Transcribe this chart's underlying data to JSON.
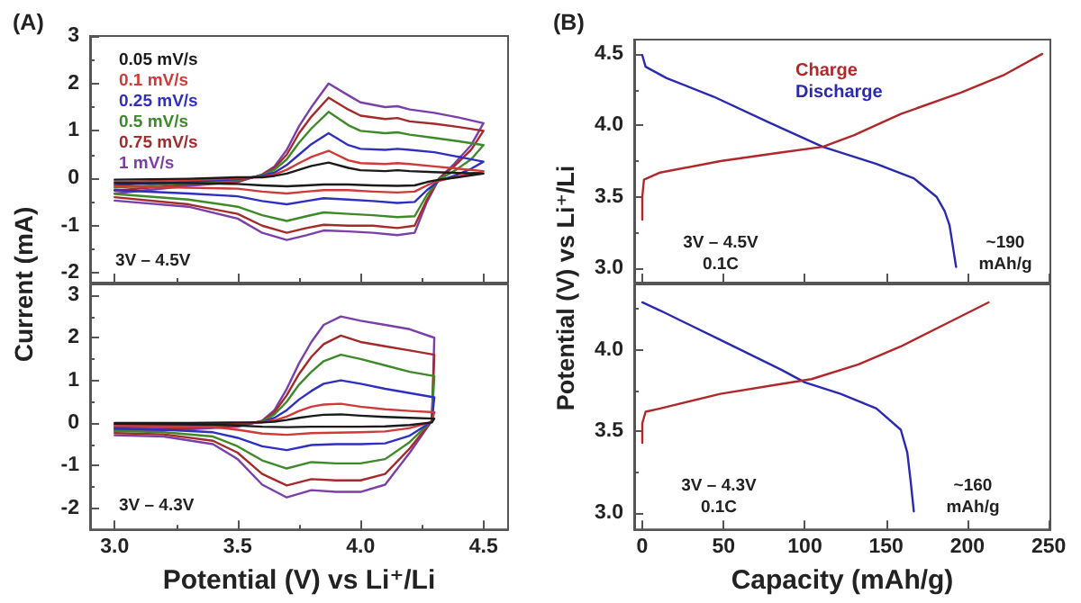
{
  "chart_data": [
    {
      "type": "line",
      "title": "(A)",
      "ylabel": "Current (mA)",
      "x": [
        3.0,
        3.3,
        3.5,
        3.6,
        3.65,
        3.7,
        3.75,
        3.8,
        3.87,
        3.95,
        4.0,
        4.1,
        4.15,
        4.2,
        4.3,
        4.4,
        4.5,
        4.45,
        4.38,
        4.32,
        4.27,
        4.22,
        4.15,
        4.05,
        3.95,
        3.85,
        3.78,
        3.7,
        3.6,
        3.5,
        3.3,
        3.0
      ],
      "series": [
        {
          "name": "0.05 mV/s",
          "color": "#1a1a1a",
          "values": [
            -0.03,
            -0.01,
            0.02,
            0.02,
            0.05,
            0.1,
            0.18,
            0.26,
            0.33,
            0.22,
            0.17,
            0.15,
            0.17,
            0.15,
            0.13,
            0.11,
            0.1,
            0.06,
            0.01,
            -0.03,
            -0.08,
            -0.15,
            -0.16,
            -0.15,
            -0.13,
            -0.13,
            -0.15,
            -0.17,
            -0.15,
            -0.12,
            -0.1,
            -0.1
          ]
        },
        {
          "name": "0.1 mV/s",
          "color": "#d03a3a",
          "values": [
            -0.08,
            -0.04,
            0.0,
            0.03,
            0.08,
            0.18,
            0.32,
            0.45,
            0.58,
            0.38,
            0.32,
            0.3,
            0.32,
            0.3,
            0.25,
            0.2,
            0.15,
            0.1,
            0.02,
            -0.05,
            -0.15,
            -0.28,
            -0.3,
            -0.28,
            -0.25,
            -0.25,
            -0.28,
            -0.32,
            -0.28,
            -0.22,
            -0.2,
            -0.17
          ]
        },
        {
          "name": "0.25 mV/s",
          "color": "#2f2fc0",
          "values": [
            -0.14,
            -0.07,
            -0.02,
            0.05,
            0.12,
            0.28,
            0.5,
            0.72,
            0.95,
            0.7,
            0.62,
            0.6,
            0.62,
            0.6,
            0.55,
            0.45,
            0.35,
            0.2,
            0.05,
            -0.05,
            -0.25,
            -0.5,
            -0.52,
            -0.48,
            -0.45,
            -0.42,
            -0.48,
            -0.55,
            -0.48,
            -0.38,
            -0.32,
            -0.25
          ]
        },
        {
          "name": "0.5 mV/s",
          "color": "#3e8a2a",
          "values": [
            -0.2,
            -0.1,
            -0.04,
            0.06,
            0.18,
            0.4,
            0.75,
            1.05,
            1.4,
            1.12,
            1.0,
            0.95,
            0.97,
            0.92,
            0.85,
            0.78,
            0.7,
            0.4,
            0.15,
            -0.02,
            -0.35,
            -0.8,
            -0.82,
            -0.78,
            -0.75,
            -0.72,
            -0.8,
            -0.9,
            -0.78,
            -0.6,
            -0.45,
            -0.33
          ]
        },
        {
          "name": "0.75 mV/s",
          "color": "#a52a2a",
          "values": [
            -0.26,
            -0.13,
            -0.06,
            0.07,
            0.22,
            0.5,
            0.95,
            1.3,
            1.7,
            1.45,
            1.32,
            1.25,
            1.27,
            1.2,
            1.15,
            1.08,
            1.0,
            0.6,
            0.25,
            0.0,
            -0.45,
            -1.0,
            -1.05,
            -1.0,
            -1.0,
            -0.98,
            -1.05,
            -1.15,
            -1.0,
            -0.75,
            -0.55,
            -0.4
          ]
        },
        {
          "name": "1 mV/s",
          "color": "#7b3fa8",
          "values": [
            -0.32,
            -0.16,
            -0.08,
            0.08,
            0.25,
            0.6,
            1.1,
            1.5,
            2.0,
            1.75,
            1.6,
            1.5,
            1.52,
            1.45,
            1.38,
            1.28,
            1.16,
            0.7,
            0.3,
            0.0,
            -0.5,
            -1.15,
            -1.2,
            -1.15,
            -1.12,
            -1.1,
            -1.2,
            -1.3,
            -1.15,
            -0.85,
            -0.6,
            -0.47
          ]
        }
      ],
      "xlim": [
        2.9,
        4.6
      ],
      "ylim": [
        -2.2,
        3
      ],
      "xticks": [
        3,
        {
          "value": 3.25,
          "label": null
        },
        3.5,
        {
          "value": 3.75,
          "label": null
        },
        4,
        {
          "value": 4.25,
          "label": null
        },
        4.5
      ],
      "yticks": [
        -2,
        {
          "value": -1.5,
          "label": null
        },
        -1,
        {
          "value": -0.5,
          "label": null
        },
        0,
        {
          "value": 0.5,
          "label": null
        },
        1,
        {
          "value": 1.5,
          "label": null
        },
        2,
        {
          "value": 2.5,
          "label": null
        },
        3
      ],
      "tick_labels": "y",
      "legend": "top left",
      "marker": "none",
      "annotations": [
        "3V – 4.5V"
      ]
    },
    {
      "type": "line",
      "xlabel": "Potential (V) vs Li⁺/Li",
      "x": [
        3.0,
        3.3,
        3.5,
        3.6,
        3.65,
        3.7,
        3.75,
        3.8,
        3.85,
        3.92,
        4.0,
        4.1,
        4.2,
        4.3,
        4.29,
        4.2,
        4.1,
        4.0,
        3.9,
        3.8,
        3.7,
        3.6,
        3.5,
        3.4,
        3.2,
        3.0
      ],
      "series": [
        {
          "color": "#1a1a1a",
          "values": [
            0.0,
            0.0,
            0.01,
            0.01,
            0.03,
            0.07,
            0.12,
            0.16,
            0.19,
            0.2,
            0.17,
            0.14,
            0.12,
            0.1,
            0.01,
            -0.05,
            -0.08,
            -0.09,
            -0.09,
            -0.09,
            -0.1,
            -0.09,
            -0.06,
            -0.04,
            -0.03,
            -0.02
          ]
        },
        {
          "color": "#d03a3a",
          "values": [
            -0.04,
            -0.03,
            -0.01,
            0.02,
            0.06,
            0.15,
            0.28,
            0.38,
            0.43,
            0.45,
            0.38,
            0.32,
            0.28,
            0.25,
            0.02,
            -0.12,
            -0.2,
            -0.22,
            -0.23,
            -0.24,
            -0.28,
            -0.25,
            -0.16,
            -0.1,
            -0.08,
            -0.07
          ]
        },
        {
          "color": "#2f2fc0",
          "values": [
            -0.08,
            -0.06,
            -0.03,
            0.02,
            0.12,
            0.3,
            0.55,
            0.75,
            0.92,
            1.0,
            0.92,
            0.8,
            0.7,
            0.6,
            0.03,
            -0.3,
            -0.48,
            -0.5,
            -0.5,
            -0.52,
            -0.64,
            -0.55,
            -0.35,
            -0.22,
            -0.16,
            -0.13
          ]
        },
        {
          "color": "#3e8a2a",
          "values": [
            -0.12,
            -0.09,
            -0.05,
            0.03,
            0.2,
            0.5,
            0.9,
            1.2,
            1.45,
            1.6,
            1.5,
            1.35,
            1.2,
            1.1,
            0.05,
            -0.45,
            -0.85,
            -0.95,
            -0.95,
            -0.92,
            -1.07,
            -0.88,
            -0.55,
            -0.32,
            -0.22,
            -0.19
          ]
        },
        {
          "color": "#a52a2a",
          "values": [
            -0.16,
            -0.12,
            -0.07,
            0.04,
            0.25,
            0.65,
            1.15,
            1.55,
            1.85,
            2.05,
            1.9,
            1.8,
            1.7,
            1.6,
            0.05,
            -0.6,
            -1.2,
            -1.35,
            -1.35,
            -1.32,
            -1.47,
            -1.2,
            -0.7,
            -0.42,
            -0.27,
            -0.24
          ]
        },
        {
          "color": "#7b3fa8",
          "values": [
            -0.2,
            -0.15,
            -0.09,
            0.05,
            0.3,
            0.8,
            1.4,
            1.9,
            2.3,
            2.5,
            2.4,
            2.3,
            2.2,
            2.0,
            0.05,
            -0.7,
            -1.45,
            -1.62,
            -1.62,
            -1.58,
            -1.75,
            -1.45,
            -0.85,
            -0.5,
            -0.32,
            -0.29
          ]
        }
      ],
      "xlim": [
        2.9,
        4.6
      ],
      "ylim": [
        -2.5,
        3.25
      ],
      "xticks": [
        {
          "value": 3,
          "label": "3.0"
        },
        {
          "value": 3.25,
          "label": null
        },
        3.5,
        {
          "value": 3.75,
          "label": null
        },
        {
          "value": 4,
          "label": "4.0"
        },
        {
          "value": 4.25,
          "label": null
        },
        4.5
      ],
      "yticks": [
        -2,
        {
          "value": -1.5,
          "label": null
        },
        -1,
        {
          "value": -0.5,
          "label": null
        },
        0,
        {
          "value": 0.5,
          "label": null
        },
        1,
        {
          "value": 1.5,
          "label": null
        },
        2,
        {
          "value": 2.5,
          "label": null
        },
        3
      ],
      "marker": "none",
      "annotations": [
        "3V – 4.3V"
      ]
    },
    {
      "type": "line",
      "title": "(B)",
      "ylabel": "Potential (V) vs Li⁺/Li",
      "series": [
        {
          "name": "Charge",
          "color": "#b0282a",
          "x": [
            0,
            0,
            1,
            11,
            48,
            85,
            111,
            130,
            159,
            196,
            222,
            246
          ],
          "values": [
            3.34,
            3.5,
            3.62,
            3.67,
            3.75,
            3.81,
            3.85,
            3.93,
            4.08,
            4.23,
            4.35,
            4.5
          ]
        },
        {
          "name": "Discharge",
          "color": "#2a2ab0",
          "x": [
            0,
            2,
            15,
            44,
            78,
            111,
            144,
            167,
            181,
            186,
            189,
            193
          ],
          "values": [
            4.49,
            4.41,
            4.33,
            4.2,
            4.02,
            3.85,
            3.73,
            3.63,
            3.5,
            3.4,
            3.3,
            3.01
          ]
        }
      ],
      "xlim": [
        -5,
        251
      ],
      "ylim": [
        2.9,
        4.6
      ],
      "xticks": [
        0,
        50,
        100,
        150,
        200,
        250
      ],
      "yticks": [
        {
          "value": 3,
          "label": "3.0"
        },
        {
          "value": 3.25,
          "label": null
        },
        3.5,
        {
          "value": 3.75,
          "label": null
        },
        {
          "value": 4,
          "label": "4.0"
        },
        {
          "value": 4.25,
          "label": null
        },
        4.5
      ],
      "tick_labels": "y",
      "legend": "top",
      "marker": "none",
      "annotations": [
        "3V – 4.5V\n0.1C",
        "~190\nmAh/g"
      ]
    },
    {
      "type": "line",
      "xlabel": "Capacity (mAh/g)",
      "series": [
        {
          "color": "#b0282a",
          "x": [
            0,
            0,
            2,
            11,
            48,
            85,
            104,
            133,
            159,
            189,
            213
          ],
          "values": [
            3.43,
            3.55,
            3.62,
            3.64,
            3.73,
            3.79,
            3.82,
            3.91,
            4.02,
            4.17,
            4.29
          ]
        },
        {
          "color": "#2a2ab0",
          "x": [
            0,
            11,
            48,
            85,
            100,
            122,
            144,
            159,
            163,
            165,
            167
          ],
          "values": [
            4.29,
            4.24,
            4.06,
            3.88,
            3.8,
            3.73,
            3.64,
            3.51,
            3.37,
            3.2,
            3.01
          ]
        }
      ],
      "xlim": [
        -5,
        251
      ],
      "ylim": [
        2.9,
        4.4
      ],
      "xticks": [
        0,
        50,
        100,
        150,
        200,
        250
      ],
      "yticks": [
        {
          "value": 3,
          "label": "3.0"
        },
        {
          "value": 3.25,
          "label": null
        },
        3.5,
        {
          "value": 3.75,
          "label": null
        },
        {
          "value": 4,
          "label": "4.0"
        },
        {
          "value": 4.25,
          "label": null
        }
      ],
      "marker": "none",
      "annotations": [
        "3V – 4.3V\n0.1C",
        "~160\nmAh/g"
      ]
    }
  ]
}
